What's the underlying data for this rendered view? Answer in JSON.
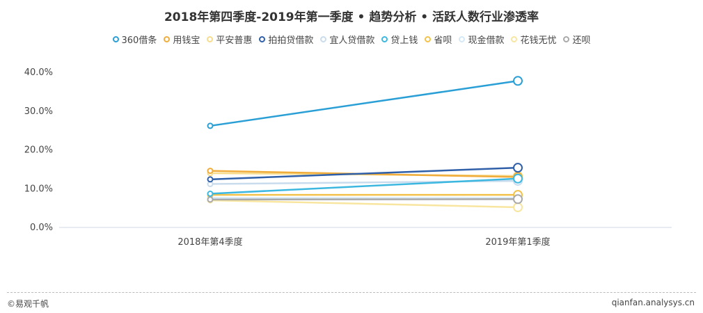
{
  "chart_data": {
    "type": "line",
    "title": "2018年第四季度-2019年第一季度 • 趋势分析 • 活跃人数行业渗透率",
    "categories": [
      "2018年第4季度",
      "2019年第1季度"
    ],
    "y_ticks": [
      "40.0%",
      "30.0%",
      "20.0%",
      "10.0%",
      "0.0%"
    ],
    "ylim": [
      0,
      40
    ],
    "grid": false,
    "legend_position": "top",
    "series": [
      {
        "name": "360借条",
        "values": [
          26.2,
          37.8
        ],
        "color": "#2a9fd6"
      },
      {
        "name": "用钱宝",
        "values": [
          14.6,
          13.0
        ],
        "color": "#f0ad3c"
      },
      {
        "name": "平安普惠",
        "values": [
          14.0,
          13.3
        ],
        "color": "#f7dc8e"
      },
      {
        "name": "拍拍贷借款",
        "values": [
          12.4,
          15.4
        ],
        "color": "#2f5fa8"
      },
      {
        "name": "宜人贷借款",
        "values": [
          11.2,
          12.0
        ],
        "color": "#c9dcee"
      },
      {
        "name": "贷上钱",
        "values": [
          8.7,
          12.6
        ],
        "color": "#3cb8e0"
      },
      {
        "name": "省呗",
        "values": [
          8.4,
          8.4
        ],
        "color": "#f3c24a"
      },
      {
        "name": "现金借款",
        "values": [
          7.6,
          7.6
        ],
        "color": "#d4e8f5"
      },
      {
        "name": "花钱无忧",
        "values": [
          7.0,
          5.2
        ],
        "color": "#f8e6a0"
      },
      {
        "name": "还呗",
        "values": [
          7.2,
          7.3
        ],
        "color": "#a9a9a9"
      }
    ]
  },
  "footer": {
    "source": "©易观千帆",
    "site": "qianfan.analysys.cn"
  }
}
